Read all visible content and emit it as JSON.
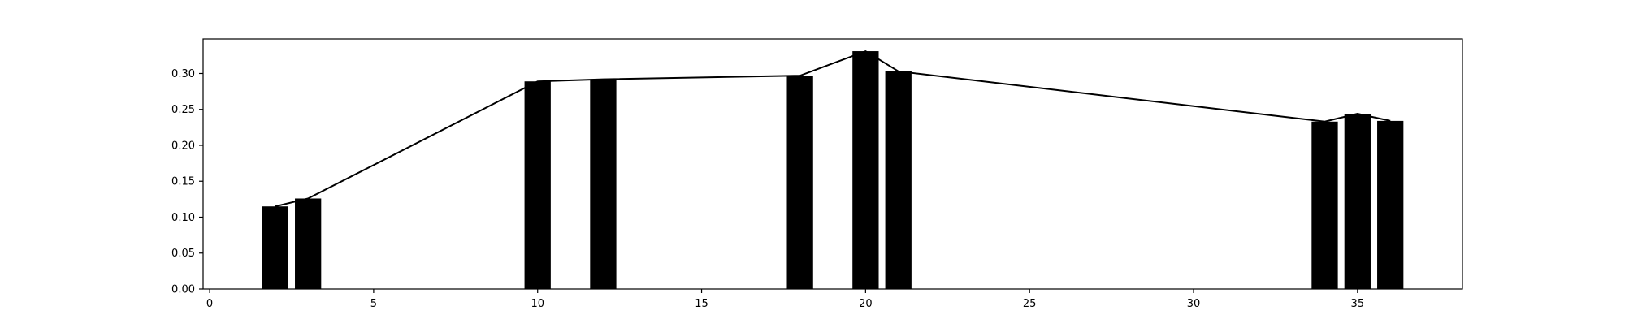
{
  "chart_data": {
    "type": "bar",
    "title": "",
    "xlabel": "",
    "ylabel": "",
    "xlim": [
      -0.2,
      38.2
    ],
    "ylim": [
      0,
      0.348
    ],
    "x_ticks": [
      0,
      5,
      10,
      15,
      20,
      25,
      30,
      35
    ],
    "y_ticks": [
      0.0,
      0.05,
      0.1,
      0.15,
      0.2,
      0.25,
      0.3
    ],
    "y_tick_labels": [
      "0.00",
      "0.05",
      "0.10",
      "0.15",
      "0.20",
      "0.25",
      "0.30"
    ],
    "grid": false,
    "bar_color": "#000000",
    "line_color": "#000000",
    "bar_width": 0.8,
    "series": [
      {
        "x": [
          2,
          3,
          10,
          12,
          18,
          20,
          21,
          34,
          35,
          36
        ],
        "values": [
          0.115,
          0.126,
          0.289,
          0.292,
          0.297,
          0.331,
          0.303,
          0.233,
          0.244,
          0.234
        ]
      }
    ]
  }
}
